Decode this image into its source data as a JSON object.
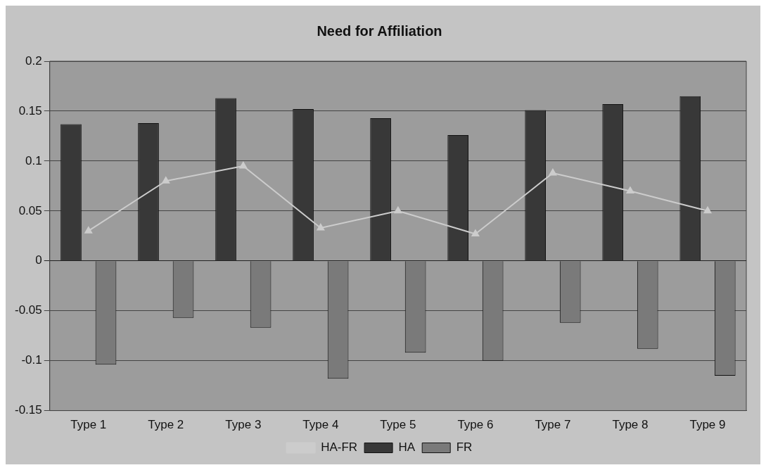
{
  "chart_data": {
    "type": "bar",
    "title": "Need for Affiliation",
    "categories": [
      "Type 1",
      "Type 2",
      "Type 3",
      "Type 4",
      "Type 5",
      "Type 6",
      "Type 7",
      "Type 8",
      "Type 9"
    ],
    "series": [
      {
        "name": "HA",
        "color": "#383838",
        "values": [
          0.137,
          0.138,
          0.163,
          0.152,
          0.143,
          0.126,
          0.151,
          0.157,
          0.165
        ]
      },
      {
        "name": "FR",
        "color": "#7a7a7a",
        "values": [
          -0.104,
          -0.057,
          -0.067,
          -0.118,
          -0.092,
          -0.1,
          -0.062,
          -0.088,
          -0.115
        ]
      },
      {
        "name": "HA-FR",
        "type": "line",
        "color": "#cccccc",
        "values": [
          0.03,
          0.08,
          0.095,
          0.033,
          0.05,
          0.027,
          0.088,
          0.07,
          0.05
        ]
      }
    ],
    "ylim": [
      -0.15,
      0.2
    ],
    "yticks": [
      -0.15,
      -0.1,
      -0.05,
      0,
      0.05,
      0.1,
      0.15,
      0.2
    ],
    "grid": "y",
    "legend": "bottom",
    "marker": "triangle"
  }
}
